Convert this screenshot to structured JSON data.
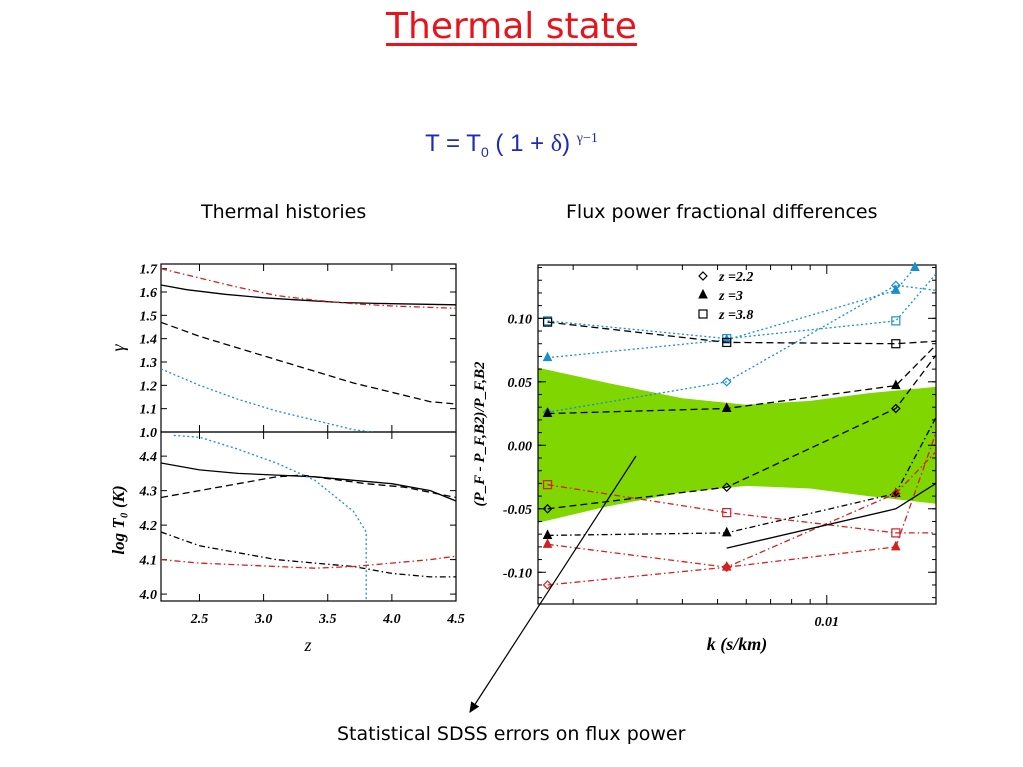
{
  "title": "Thermal state",
  "formula": {
    "t": "T",
    "equals": "=",
    "t0": "T",
    "sub": "0",
    "body": "( 1 +",
    "delta": "δ",
    "close": ")",
    "exp": "γ−1"
  },
  "captions": {
    "left": "Thermal histories",
    "right": "Flux power fractional differences",
    "bottom": "Statistical  SDSS errors on flux power"
  },
  "colors": {
    "title": "#e8141b",
    "formula": "#1f2ab5",
    "band": "#7fd600",
    "red": "#d42020",
    "blue": "#1a8fd0",
    "black": "#000000"
  },
  "chart_data": [
    {
      "type": "line",
      "panel": "gamma",
      "xlabel": "z",
      "ylabel": "γ",
      "xlim": [
        2.2,
        4.5
      ],
      "ylim": [
        1.0,
        1.72
      ],
      "xticks": [
        "2.5",
        "3.0",
        "3.5",
        "4.0",
        "4.5"
      ],
      "yticks": [
        "1.7",
        "1.6",
        "1.5",
        "1.4",
        "1.3",
        "1.2",
        "1.1",
        "1.0"
      ],
      "series": [
        {
          "color": "black",
          "dash": "solid",
          "x": [
            2.2,
            2.4,
            2.7,
            3.0,
            3.3,
            3.6,
            4.0,
            4.5
          ],
          "y": [
            1.63,
            1.61,
            1.59,
            1.575,
            1.565,
            1.555,
            1.55,
            1.545
          ]
        },
        {
          "color": "red",
          "dash": "dashdot",
          "x": [
            2.2,
            2.5,
            2.8,
            3.1,
            3.4,
            3.7,
            4.0,
            4.5
          ],
          "y": [
            1.7,
            1.66,
            1.62,
            1.585,
            1.565,
            1.55,
            1.54,
            1.53
          ]
        },
        {
          "color": "black",
          "dash": "dashed",
          "x": [
            2.2,
            2.5,
            2.8,
            3.1,
            3.4,
            3.7,
            4.0,
            4.3,
            4.5
          ],
          "y": [
            1.47,
            1.41,
            1.36,
            1.31,
            1.26,
            1.21,
            1.17,
            1.13,
            1.12
          ]
        },
        {
          "color": "blue",
          "dash": "dotted",
          "x": [
            2.2,
            2.5,
            2.8,
            3.1,
            3.4,
            3.7,
            3.85
          ],
          "y": [
            1.27,
            1.2,
            1.14,
            1.09,
            1.05,
            1.01,
            1.0
          ]
        }
      ]
    },
    {
      "type": "line",
      "panel": "temperature",
      "xlabel": "z",
      "ylabel": "log T₀ (K)",
      "xlim": [
        2.2,
        4.5
      ],
      "ylim": [
        3.98,
        4.47
      ],
      "xticks": [
        "2.5",
        "3.0",
        "3.5",
        "4.0",
        "4.5"
      ],
      "yticks": [
        "4.4",
        "4.3",
        "4.2",
        "4.1",
        "4.0"
      ],
      "series": [
        {
          "color": "black",
          "dash": "solid",
          "x": [
            2.2,
            2.5,
            2.8,
            3.1,
            3.4,
            3.7,
            4.0,
            4.3,
            4.5
          ],
          "y": [
            4.38,
            4.36,
            4.35,
            4.345,
            4.34,
            4.33,
            4.32,
            4.3,
            4.27
          ]
        },
        {
          "color": "black",
          "dash": "dashed",
          "x": [
            2.2,
            2.5,
            2.8,
            3.1,
            3.3,
            3.5,
            3.8,
            4.1,
            4.5
          ],
          "y": [
            4.28,
            4.3,
            4.32,
            4.34,
            4.345,
            4.335,
            4.32,
            4.31,
            4.28
          ]
        },
        {
          "color": "blue",
          "dash": "dotted",
          "x": [
            2.3,
            2.5,
            2.8,
            3.1,
            3.4,
            3.7,
            3.8,
            3.8
          ],
          "y": [
            4.46,
            4.455,
            4.42,
            4.38,
            4.33,
            4.24,
            4.18,
            3.98
          ]
        },
        {
          "color": "black",
          "dash": "dashdot",
          "x": [
            2.2,
            2.5,
            2.8,
            3.1,
            3.4,
            3.7,
            4.0,
            4.3,
            4.5
          ],
          "y": [
            4.18,
            4.14,
            4.12,
            4.1,
            4.09,
            4.08,
            4.06,
            4.05,
            4.05
          ]
        },
        {
          "color": "red",
          "dash": "dashdot",
          "x": [
            2.2,
            2.5,
            2.8,
            3.1,
            3.4,
            3.7,
            4.0,
            4.3,
            4.5
          ],
          "y": [
            4.1,
            4.09,
            4.085,
            4.08,
            4.075,
            4.08,
            4.09,
            4.1,
            4.11
          ]
        }
      ]
    },
    {
      "type": "line",
      "panel": "flux",
      "xlabel": "k (s/km)",
      "ylabel": "(P_F - P_F,B2)/P_F,B2",
      "xscale": "log",
      "xlim": [
        0.0016,
        0.02
      ],
      "ylim": [
        -0.125,
        0.142
      ],
      "xticks": [
        "0.01"
      ],
      "yticks": [
        "0.10",
        "0.05",
        "0.00",
        "-0.05",
        "-0.10"
      ],
      "legend": [
        {
          "label": "z =2.2",
          "marker": "diamond-open"
        },
        {
          "label": "z =3",
          "marker": "triangle-filled"
        },
        {
          "label": "z =3.8",
          "marker": "square-open"
        }
      ],
      "band": {
        "color": "green",
        "k": [
          0.0016,
          0.0025,
          0.004,
          0.006,
          0.009,
          0.013,
          0.02
        ],
        "upper": [
          0.061,
          0.049,
          0.037,
          0.032,
          0.035,
          0.041,
          0.046
        ],
        "lower": [
          -0.061,
          -0.048,
          -0.037,
          -0.032,
          -0.034,
          -0.04,
          -0.046
        ]
      },
      "series": [
        {
          "color": "blue",
          "marker": "square-open",
          "dash": "dotted",
          "x": [
            0.0017,
            0.0053,
            0.0155,
            0.02
          ],
          "y": [
            0.098,
            0.084,
            0.098,
            0.135
          ]
        },
        {
          "color": "blue",
          "marker": "triangle-filled",
          "dash": "dotted",
          "x": [
            0.0017,
            0.0053,
            0.0155,
            0.0175
          ],
          "y": [
            0.069,
            0.083,
            0.122,
            0.14
          ]
        },
        {
          "color": "blue",
          "marker": "diamond-open",
          "dash": "dotted",
          "x": [
            0.0017,
            0.0053,
            0.0155,
            0.02
          ],
          "y": [
            0.026,
            0.05,
            0.126,
            0.122
          ]
        },
        {
          "color": "black",
          "marker": "square-open",
          "dash": "dashed",
          "x": [
            0.0017,
            0.0053,
            0.0155,
            0.02
          ],
          "y": [
            0.097,
            0.081,
            0.08,
            0.082
          ]
        },
        {
          "color": "black",
          "marker": "triangle-filled",
          "dash": "dashed",
          "x": [
            0.0017,
            0.0053,
            0.0155,
            0.02
          ],
          "y": [
            0.025,
            0.029,
            0.047,
            0.079
          ]
        },
        {
          "color": "black",
          "marker": "diamond-open",
          "dash": "dashed",
          "x": [
            0.0017,
            0.0053,
            0.0155,
            0.02
          ],
          "y": [
            -0.05,
            -0.033,
            0.029,
            0.071
          ]
        },
        {
          "color": "black",
          "marker": "triangle-filled",
          "dash": "dashdot",
          "x": [
            0.0017,
            0.0053,
            0.0155,
            0.02
          ],
          "y": [
            -0.071,
            -0.069,
            -0.038,
            0.022
          ]
        },
        {
          "color": "red",
          "marker": "square-open",
          "dash": "dashdot",
          "x": [
            0.0017,
            0.0053,
            0.0155,
            0.02
          ],
          "y": [
            -0.031,
            -0.053,
            -0.069,
            -0.069
          ]
        },
        {
          "color": "red",
          "marker": "triangle-filled",
          "dash": "dashdot",
          "x": [
            0.0017,
            0.0053,
            0.0155,
            0.02
          ],
          "y": [
            -0.078,
            -0.096,
            -0.08,
            0.01
          ]
        },
        {
          "color": "red",
          "marker": "diamond-open",
          "dash": "dashdot",
          "x": [
            0.0017,
            0.0053,
            0.0155,
            0.02
          ],
          "y": [
            -0.11,
            -0.096,
            -0.038,
            -0.005
          ]
        },
        {
          "color": "black",
          "marker": "none",
          "dash": "solid",
          "x": [
            0.0053,
            0.0155,
            0.02
          ],
          "y": [
            -0.081,
            -0.05,
            -0.03
          ]
        }
      ]
    }
  ]
}
